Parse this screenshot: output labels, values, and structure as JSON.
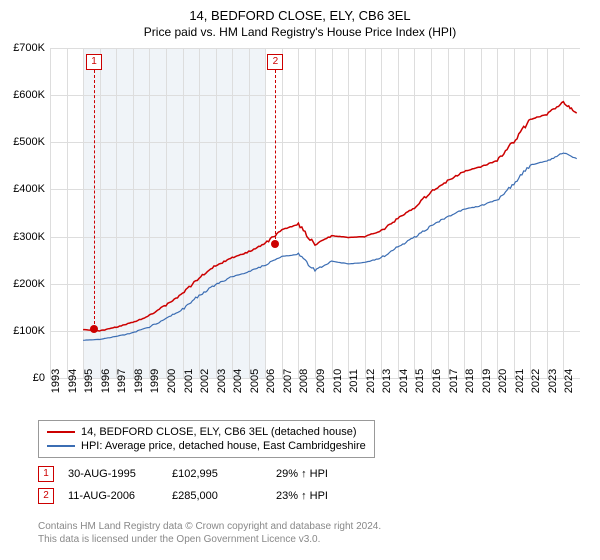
{
  "title": "14, BEDFORD CLOSE, ELY, CB6 3EL",
  "subtitle": "Price paid vs. HM Land Registry's House Price Index (HPI)",
  "chart": {
    "type": "line",
    "xlim": [
      1993,
      2025
    ],
    "ylim": [
      0,
      700000
    ],
    "y_ticks": [
      0,
      100000,
      200000,
      300000,
      400000,
      500000,
      600000,
      700000
    ],
    "y_tick_labels": [
      "£0",
      "£100K",
      "£200K",
      "£300K",
      "£400K",
      "£500K",
      "£600K",
      "£700K"
    ],
    "x_ticks": [
      1993,
      1994,
      1995,
      1996,
      1997,
      1998,
      1999,
      2000,
      2001,
      2002,
      2003,
      2004,
      2005,
      2006,
      2007,
      2008,
      2009,
      2010,
      2011,
      2012,
      2013,
      2014,
      2015,
      2016,
      2017,
      2018,
      2019,
      2020,
      2021,
      2022,
      2023,
      2024
    ],
    "background_color": "#ffffff",
    "grid_color": "#dddddd",
    "shaded_color": "#f0f4f8",
    "shaded_range": [
      1995,
      2006
    ],
    "series": [
      {
        "name": "property",
        "label": "14, BEDFORD CLOSE, ELY, CB6 3EL (detached house)",
        "color": "#cc0000",
        "width": 1.5,
        "data": [
          [
            1995,
            102995
          ],
          [
            1996,
            100000
          ],
          [
            1997,
            108000
          ],
          [
            1998,
            118000
          ],
          [
            1999,
            132000
          ],
          [
            2000,
            155000
          ],
          [
            2001,
            178000
          ],
          [
            2002,
            212000
          ],
          [
            2003,
            238000
          ],
          [
            2004,
            255000
          ],
          [
            2005,
            268000
          ],
          [
            2006,
            285000
          ],
          [
            2007,
            315000
          ],
          [
            2008,
            325000
          ],
          [
            2009,
            282000
          ],
          [
            2010,
            302000
          ],
          [
            2011,
            298000
          ],
          [
            2012,
            300000
          ],
          [
            2013,
            312000
          ],
          [
            2014,
            338000
          ],
          [
            2015,
            362000
          ],
          [
            2016,
            395000
          ],
          [
            2017,
            418000
          ],
          [
            2018,
            438000
          ],
          [
            2019,
            448000
          ],
          [
            2020,
            462000
          ],
          [
            2021,
            502000
          ],
          [
            2022,
            548000
          ],
          [
            2023,
            560000
          ],
          [
            2024,
            585000
          ],
          [
            2024.8,
            562000
          ]
        ]
      },
      {
        "name": "hpi",
        "label": "HPI: Average price, detached house, East Cambridgeshire",
        "color": "#3b6db3",
        "width": 1.2,
        "data": [
          [
            1995,
            80000
          ],
          [
            1996,
            82000
          ],
          [
            1997,
            88000
          ],
          [
            1998,
            96000
          ],
          [
            1999,
            108000
          ],
          [
            2000,
            126000
          ],
          [
            2001,
            145000
          ],
          [
            2002,
            175000
          ],
          [
            2003,
            198000
          ],
          [
            2004,
            215000
          ],
          [
            2005,
            225000
          ],
          [
            2006,
            240000
          ],
          [
            2007,
            258000
          ],
          [
            2008,
            262000
          ],
          [
            2009,
            228000
          ],
          [
            2010,
            248000
          ],
          [
            2011,
            242000
          ],
          [
            2012,
            245000
          ],
          [
            2013,
            255000
          ],
          [
            2014,
            278000
          ],
          [
            2015,
            298000
          ],
          [
            2016,
            322000
          ],
          [
            2017,
            342000
          ],
          [
            2018,
            358000
          ],
          [
            2019,
            365000
          ],
          [
            2020,
            378000
          ],
          [
            2021,
            412000
          ],
          [
            2022,
            452000
          ],
          [
            2023,
            460000
          ],
          [
            2024,
            478000
          ],
          [
            2024.8,
            465000
          ]
        ]
      }
    ],
    "markers": [
      {
        "num": "1",
        "x": 1995.66,
        "y": 102995
      },
      {
        "num": "2",
        "x": 2006.61,
        "y": 285000
      }
    ]
  },
  "legend": {
    "rows": [
      {
        "color": "#cc0000",
        "label": "14, BEDFORD CLOSE, ELY, CB6 3EL (detached house)"
      },
      {
        "color": "#3b6db3",
        "label": "HPI: Average price, detached house, East Cambridgeshire"
      }
    ]
  },
  "sales": [
    {
      "num": "1",
      "date": "30-AUG-1995",
      "price": "£102,995",
      "hpi_diff": "29% ↑ HPI"
    },
    {
      "num": "2",
      "date": "11-AUG-2006",
      "price": "£285,000",
      "hpi_diff": "23% ↑ HPI"
    }
  ],
  "footer_l1": "Contains HM Land Registry data © Crown copyright and database right 2024.",
  "footer_l2": "This data is licensed under the Open Government Licence v3.0."
}
